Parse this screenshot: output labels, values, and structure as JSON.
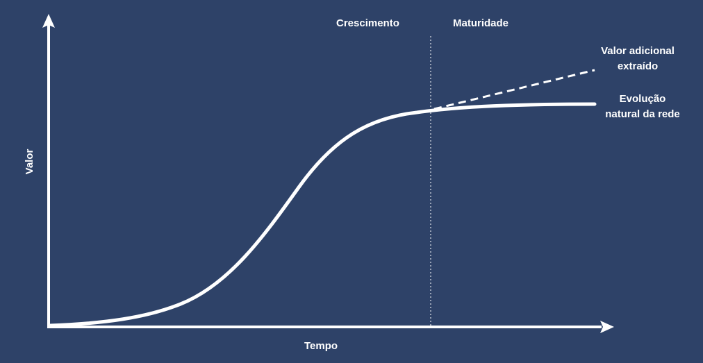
{
  "phases": {
    "growth": "Crescimento",
    "maturity": "Maturidade"
  },
  "annotations": {
    "extra_value": [
      "Valor adicional",
      "extraído"
    ],
    "natural_evolution": [
      "Evolução",
      "natural da rede"
    ]
  },
  "axes": {
    "x_label": "Tempo",
    "y_label": "Valor"
  },
  "colors": {
    "background": "#2e4268",
    "foreground": "#ffffff"
  }
}
